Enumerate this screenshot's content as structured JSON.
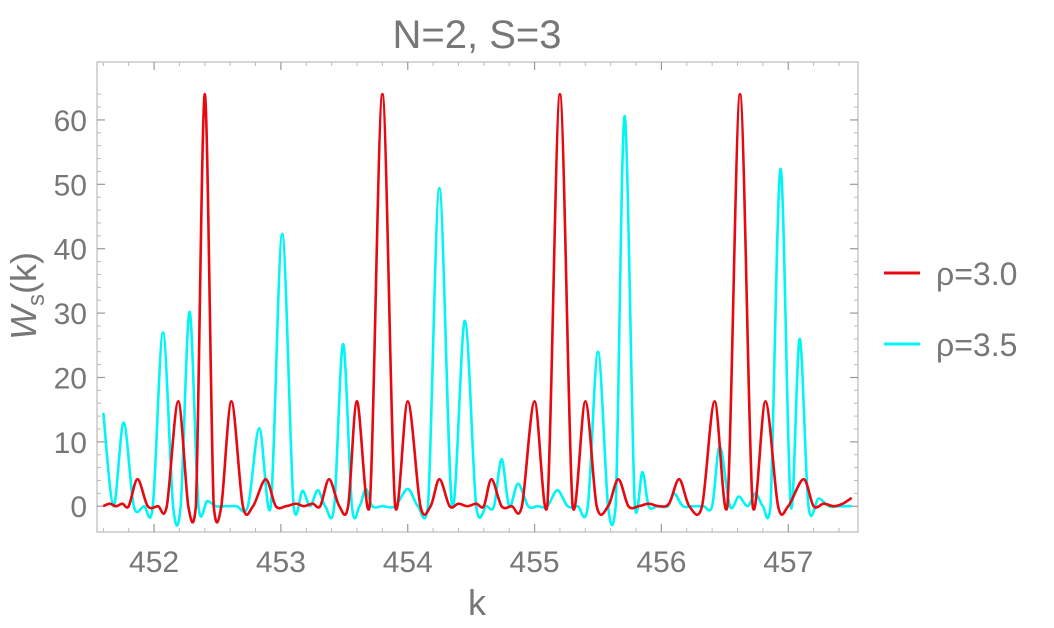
{
  "chart_data": {
    "type": "line",
    "title": "N=2, S=3",
    "xlabel": "k",
    "ylabel_main": "W",
    "ylabel_sub": "s",
    "ylabel_tail": "(k)",
    "xlim": [
      451.55,
      457.55
    ],
    "ylim": [
      -4,
      69
    ],
    "x_ticks": [
      452,
      453,
      454,
      455,
      456,
      457
    ],
    "y_ticks": [
      0,
      10,
      20,
      30,
      40,
      50,
      60
    ],
    "grid": false,
    "legend_position": "right",
    "series": [
      {
        "name": "ρ=3.0",
        "color": "#e8080f",
        "x": [
          451.6,
          451.65,
          451.7,
          451.75,
          451.8,
          451.87,
          451.95,
          452.03,
          452.1,
          452.19,
          452.27,
          452.33,
          452.4,
          452.47,
          452.53,
          452.61,
          452.7,
          452.78,
          452.88,
          452.96,
          453.04,
          453.12,
          453.18,
          453.25,
          453.31,
          453.38,
          453.46,
          453.53,
          453.6,
          453.7,
          453.8,
          453.9,
          454.0,
          454.1,
          454.18,
          454.25,
          454.33,
          454.4,
          454.47,
          454.54,
          454.6,
          454.66,
          454.74,
          454.82,
          454.9,
          455.0,
          455.1,
          455.2,
          455.3,
          455.4,
          455.49,
          455.58,
          455.66,
          455.74,
          455.82,
          455.9,
          455.98,
          456.06,
          456.14,
          456.22,
          456.32,
          456.42,
          456.52,
          456.62,
          456.72,
          456.82,
          456.92,
          457.0,
          457.12,
          457.2,
          457.28,
          457.36,
          457.43,
          457.5
        ],
        "values": [
          0,
          0.4,
          0,
          0.4,
          0,
          4.2,
          0,
          0,
          0,
          16.3,
          0,
          0,
          64,
          0,
          0,
          16.3,
          0,
          0,
          4.2,
          0,
          0,
          0.4,
          0,
          0.4,
          0,
          4.2,
          0,
          0,
          16.3,
          0,
          64,
          0,
          16.3,
          0,
          0,
          4.2,
          0,
          0.4,
          0,
          0.4,
          0,
          4.2,
          0,
          0,
          0,
          16.3,
          0,
          64,
          0,
          16.3,
          0,
          0,
          4.2,
          0,
          0,
          0.4,
          0,
          0.4,
          4.2,
          0,
          0,
          16.3,
          0,
          64,
          0,
          16.3,
          0,
          0,
          4.2,
          0,
          0.4,
          0,
          0.4,
          1.3
        ]
      },
      {
        "name": "ρ=3.5",
        "color": "#00f5f5",
        "x": [
          451.6,
          451.68,
          451.76,
          451.84,
          451.92,
          451.99,
          452.07,
          452.15,
          452.21,
          452.28,
          452.35,
          452.42,
          452.49,
          452.56,
          452.65,
          452.74,
          452.83,
          452.92,
          453.01,
          453.1,
          453.17,
          453.23,
          453.29,
          453.35,
          453.42,
          453.49,
          453.56,
          453.62,
          453.67,
          453.72,
          453.8,
          453.9,
          454.0,
          454.08,
          454.16,
          454.25,
          454.35,
          454.45,
          454.54,
          454.62,
          454.68,
          454.74,
          454.8,
          454.87,
          454.95,
          455.02,
          455.1,
          455.18,
          455.26,
          455.34,
          455.42,
          455.5,
          455.58,
          455.64,
          455.71,
          455.79,
          455.85,
          455.9,
          455.97,
          456.05,
          456.1,
          456.17,
          456.25,
          456.33,
          456.4,
          456.46,
          456.54,
          456.61,
          456.68,
          456.74,
          456.8,
          456.86,
          456.94,
          457.02,
          457.09,
          457.16,
          457.24,
          457.32,
          457.4,
          457.5
        ],
        "values": [
          14.5,
          0,
          13,
          0,
          0,
          0,
          27,
          0,
          0,
          30.2,
          0,
          0.8,
          0,
          0,
          0,
          0,
          12.1,
          0,
          42.3,
          0,
          2.4,
          0,
          2.5,
          0,
          0,
          25.2,
          0,
          0,
          2.7,
          0,
          0,
          0,
          2.7,
          0,
          0,
          49.4,
          0,
          28.8,
          0,
          0,
          0,
          7.3,
          0,
          3.5,
          0,
          0,
          0,
          2.5,
          0,
          0,
          0,
          24,
          0,
          0,
          60.6,
          0,
          5.3,
          0,
          0,
          0,
          2,
          0,
          0,
          0,
          0,
          9.3,
          0,
          1.5,
          0,
          2,
          0,
          0,
          52.4,
          0,
          26,
          0,
          1.2,
          0,
          0,
          0
        ]
      }
    ]
  }
}
